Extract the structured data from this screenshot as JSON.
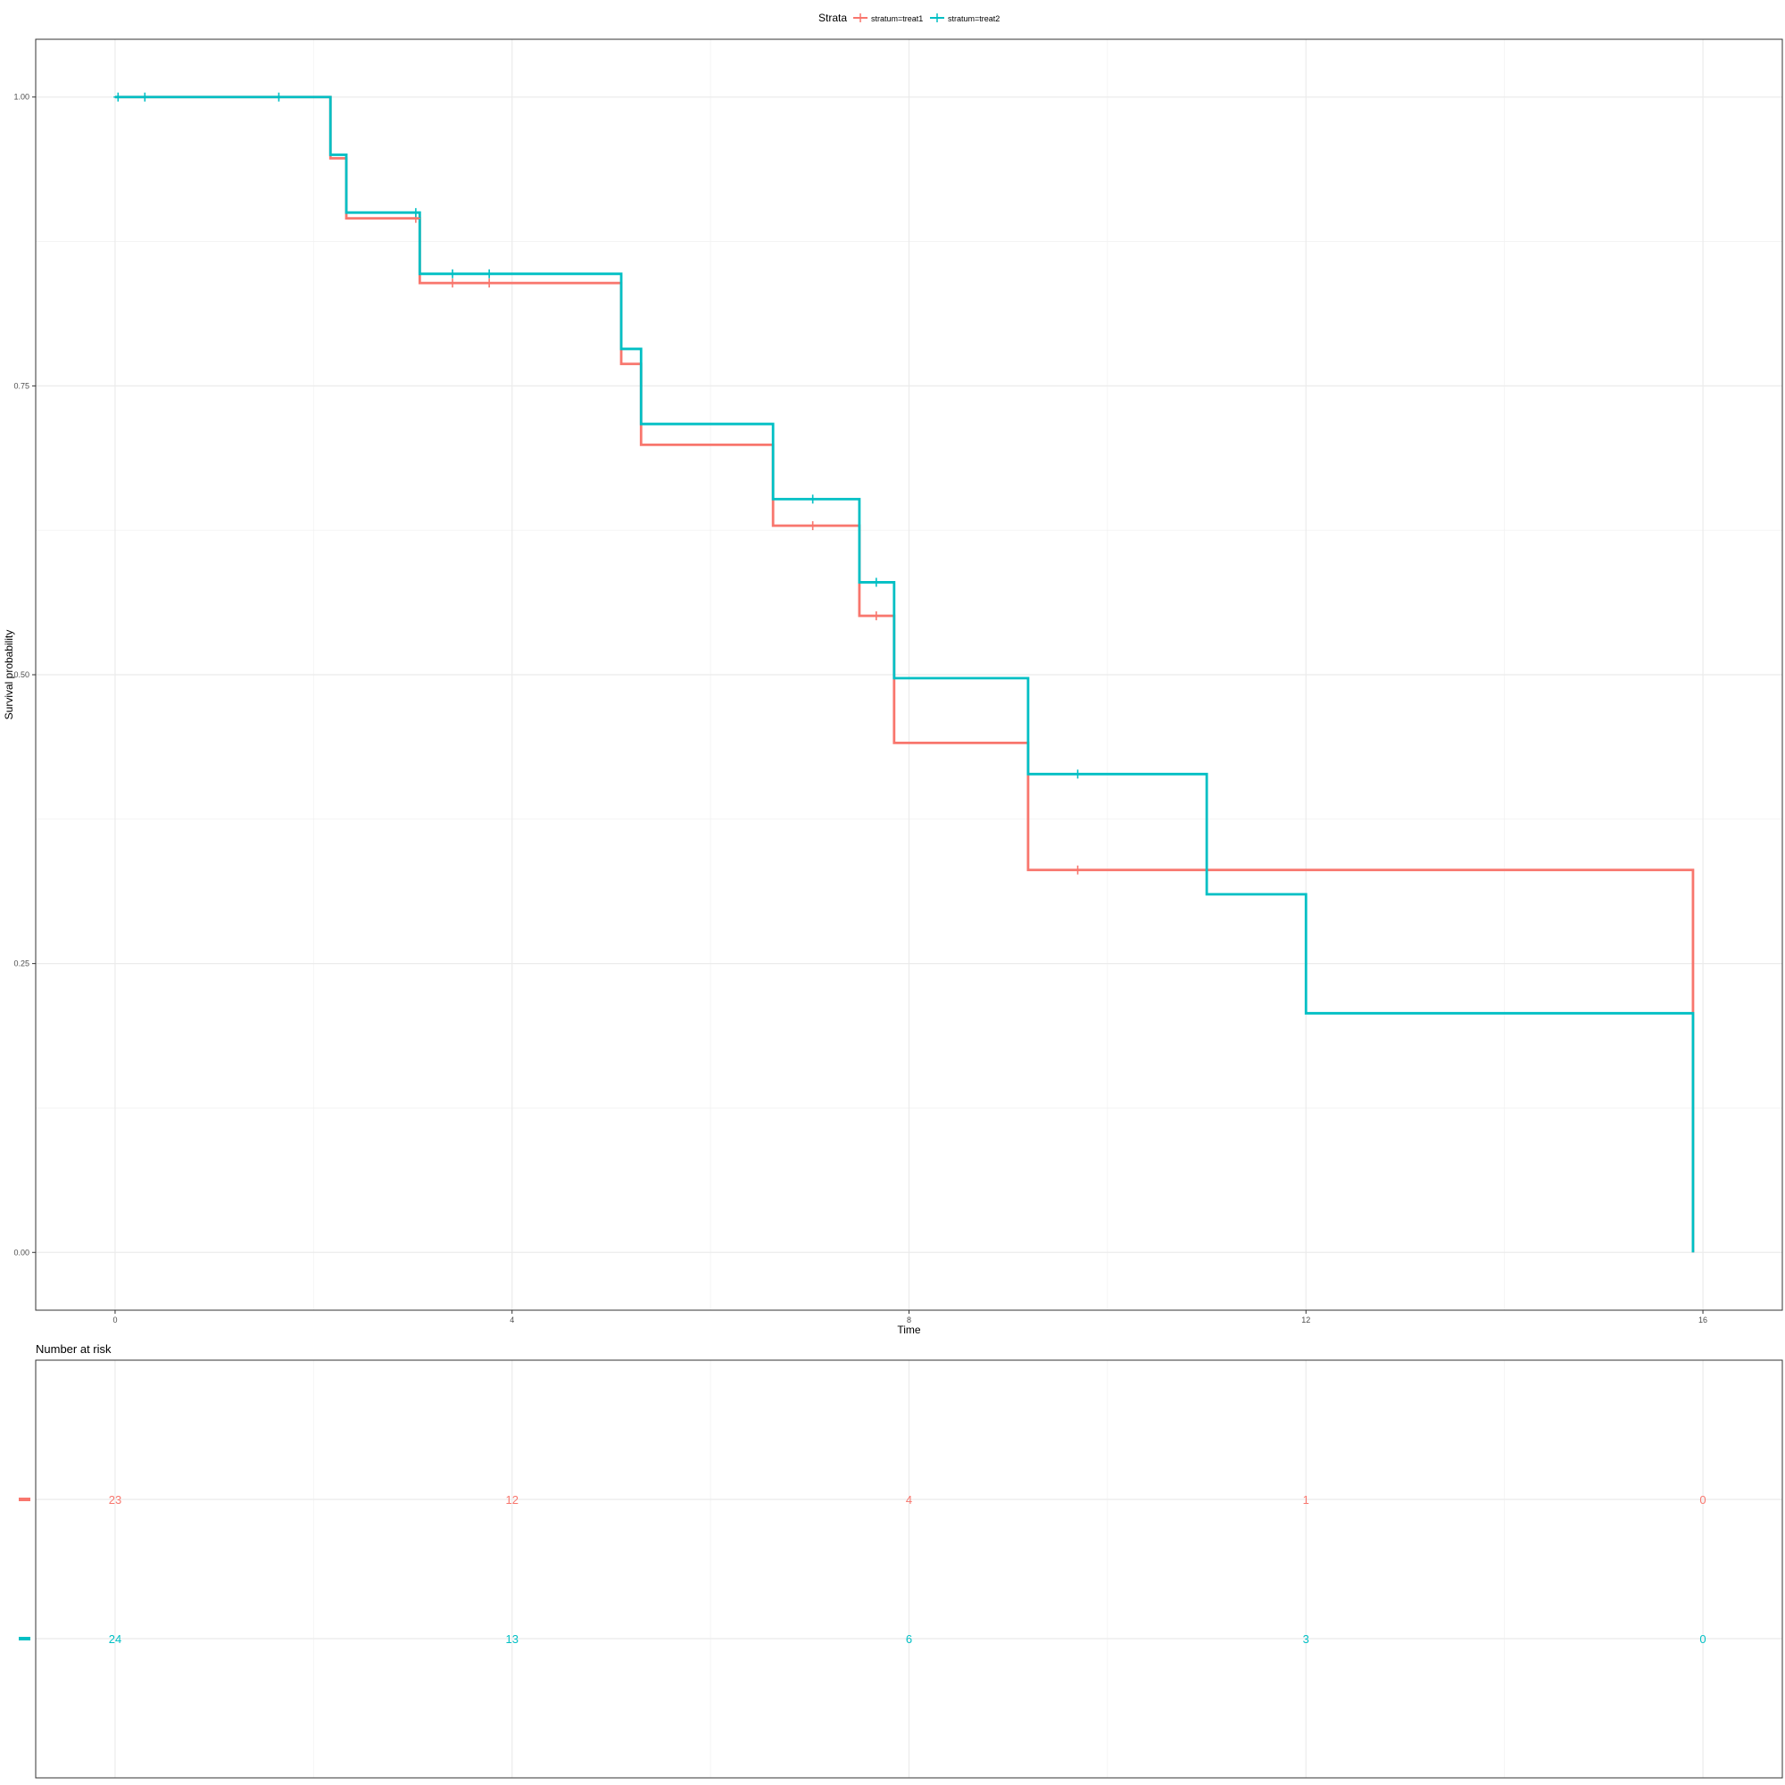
{
  "chart_data": [
    {
      "type": "line",
      "subtype": "step",
      "title": "",
      "xlabel": "Time",
      "ylabel": "Survival probability",
      "xlim": [
        -0.8,
        16.8
      ],
      "ylim": [
        -0.05,
        1.05
      ],
      "x_ticks": [
        0,
        4,
        8,
        12,
        16
      ],
      "x_tick_labels": [
        "0",
        "4",
        "8",
        "12",
        "16"
      ],
      "y_ticks": [
        0,
        0.25,
        0.5,
        0.75,
        1
      ],
      "y_tick_labels": [
        "0.00",
        "0.25",
        "0.50",
        "0.75",
        "1.00"
      ],
      "grid": true,
      "legend": {
        "title": "Strata",
        "position": "top",
        "entries": [
          "stratum=treat1",
          "stratum=treat2"
        ]
      },
      "series": [
        {
          "name": "stratum=treat1",
          "color": "#F8766D",
          "x": [
            0,
            2.17,
            2.33,
            3.07,
            5.1,
            5.3,
            6.63,
            7.5,
            7.85,
            9.2,
            15.9
          ],
          "y": [
            1.0,
            0.947,
            0.895,
            0.839,
            0.769,
            0.699,
            0.629,
            0.551,
            0.441,
            0.331,
            0.0
          ],
          "censor_x": [
            3.03,
            3.4,
            3.77,
            7.03,
            7.67,
            9.7
          ],
          "censor_y": [
            0.895,
            0.839,
            0.839,
            0.629,
            0.551,
            0.331
          ]
        },
        {
          "name": "stratum=treat2",
          "color": "#00BFC4",
          "x": [
            0,
            2.17,
            2.33,
            3.07,
            5.1,
            5.3,
            6.63,
            7.5,
            7.85,
            9.2,
            11.0,
            12.0,
            15.9
          ],
          "y": [
            1.0,
            0.95,
            0.9,
            0.847,
            0.782,
            0.717,
            0.652,
            0.58,
            0.497,
            0.414,
            0.31,
            0.207,
            0.0
          ],
          "censor_x": [
            0.03,
            0.3,
            1.65,
            3.03,
            3.4,
            3.77,
            7.03,
            7.67,
            9.7
          ],
          "censor_y": [
            1.0,
            1.0,
            1.0,
            0.9,
            0.847,
            0.847,
            0.652,
            0.58,
            0.414
          ]
        }
      ]
    },
    {
      "type": "table",
      "title": "Number at risk",
      "xlim": [
        -0.8,
        16.8
      ],
      "times": [
        0,
        4,
        8,
        12,
        16
      ],
      "grid": true,
      "rows": [
        {
          "strata": "stratum=treat1",
          "color": "#F8766D",
          "values": [
            "23",
            "12",
            "4",
            "1",
            "0"
          ]
        },
        {
          "strata": "stratum=treat2",
          "color": "#00BFC4",
          "values": [
            "24",
            "13",
            "6",
            "3",
            "0"
          ]
        }
      ]
    }
  ]
}
